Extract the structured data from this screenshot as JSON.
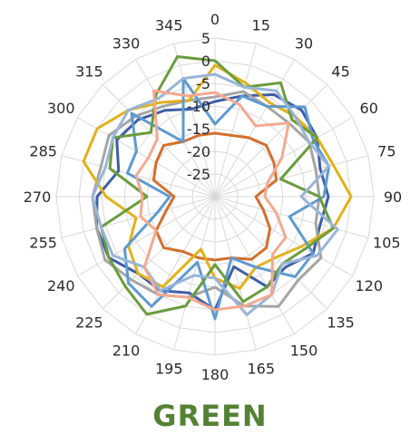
{
  "chart_data": {
    "type": "radar",
    "title": "GREEN",
    "title_color": "#548235",
    "angles": [
      0,
      15,
      30,
      45,
      60,
      75,
      90,
      105,
      120,
      135,
      150,
      165,
      180,
      195,
      210,
      225,
      240,
      255,
      270,
      285,
      300,
      315,
      330,
      345
    ],
    "angle_labels": [
      "0",
      "15",
      "30",
      "45",
      "60",
      "75",
      "90",
      "105",
      "120",
      "135",
      "150",
      "165",
      "180",
      "195",
      "210",
      "225",
      "240",
      "255",
      "270",
      "285",
      "300",
      "315",
      "330",
      "345"
    ],
    "radial_ticks": [
      5,
      0,
      -5,
      -10,
      -15,
      -20,
      -25
    ],
    "radial_tick_labels": [
      "5",
      "0",
      "-5",
      "-10",
      "-15",
      "-20",
      "-25"
    ],
    "rlim": [
      -30,
      5
    ],
    "grid": true,
    "series": [
      {
        "color": "#D36F2C",
        "values": [
          -16,
          -16,
          -15,
          -14,
          -15,
          -16,
          -21,
          -19,
          -16,
          -14,
          -14,
          -16,
          -16,
          -16,
          -16,
          -14,
          -15,
          -19,
          -21,
          -16,
          -15,
          -14,
          -16,
          -16
        ]
      },
      {
        "color": "#3E5FA6",
        "values": [
          -9,
          -7,
          -4,
          -3,
          -4,
          -6,
          -5,
          -6,
          -5,
          -8,
          -7,
          -14,
          -5,
          -8,
          -6,
          -6,
          -3,
          -3,
          -4,
          -8,
          -5,
          -6,
          -8,
          -10
        ]
      },
      {
        "color": "#A5A5A5",
        "values": [
          -8,
          -6,
          -7,
          -7,
          -6,
          -7,
          -7,
          -7,
          -3,
          -4,
          -2,
          -5,
          -10,
          -7,
          -5,
          -4,
          -2,
          -3,
          -3,
          -4,
          -3,
          -5,
          -7,
          -8
        ]
      },
      {
        "color": "#E2B11B",
        "values": [
          -1,
          -4,
          -6,
          -5,
          -4,
          -3,
          0,
          -3,
          -8,
          -11,
          -12,
          -9,
          -12,
          -18,
          -7,
          -6,
          -8,
          -12,
          -6,
          0,
          0,
          -3,
          -6,
          -8
        ]
      },
      {
        "color": "#5E9AD1",
        "values": [
          -14,
          -7,
          -7,
          -2,
          -5,
          -4,
          -6,
          -13,
          -5,
          -5,
          -12,
          -16,
          -3,
          -15,
          -2,
          -3,
          -7,
          -17,
          -20,
          -10,
          -10,
          -4,
          -16,
          -3
        ]
      },
      {
        "color": "#6A9C3D",
        "values": [
          0,
          -5,
          -1,
          -6,
          -4,
          -15,
          -7,
          -3,
          -7,
          -9,
          -7,
          -6,
          -15,
          -5,
          0,
          -2,
          -3,
          -4,
          -15,
          -6,
          -4,
          -10,
          -4,
          2
        ]
      },
      {
        "color": "#98B5D9",
        "values": [
          -3,
          -5,
          -3,
          -5,
          -6,
          -4,
          -11,
          -2,
          -4,
          -9,
          -5,
          -3,
          -12,
          -12,
          -6,
          -8,
          -4,
          -4,
          -3,
          -5,
          -4,
          -3,
          -5,
          -3
        ]
      },
      {
        "color": "#F4A98F",
        "values": [
          -7,
          -9,
          -12,
          -7,
          -13,
          -18,
          -19,
          -16,
          -12,
          -12,
          -5,
          -5,
          -5,
          -7,
          -5,
          -8,
          -15,
          -13,
          -14,
          -12,
          -13,
          -12,
          -3,
          -7
        ]
      }
    ]
  }
}
